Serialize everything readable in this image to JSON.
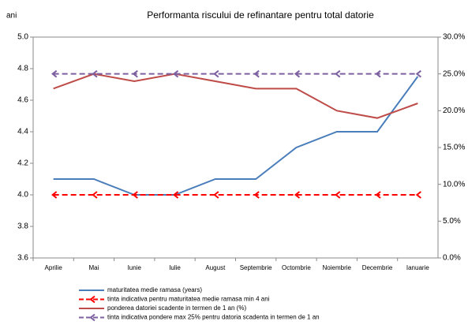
{
  "chart_data": {
    "type": "line",
    "title": "Performanta riscului de refinantare pentru total  datorie",
    "y_label": "ani",
    "categories": [
      "Aprilie",
      "Mai",
      "Iunie",
      "Iulie",
      "August",
      "Septembrie",
      "Octombrie",
      "Noiembrie",
      "Decembrie",
      "Ianuarie"
    ],
    "ylim": [
      3.6,
      5.0
    ],
    "yticks": [
      3.6,
      3.8,
      {
        "value": 4.0,
        "label": "4.0"
      },
      4.2,
      4.4,
      4.6,
      4.8,
      {
        "value": 5.0,
        "label": "5.0"
      }
    ],
    "y2lim": [
      0,
      30
    ],
    "y2ticks": [
      {
        "value": 0,
        "label": "0.0%"
      },
      {
        "value": 5,
        "label": "5.0%"
      },
      {
        "value": 10,
        "label": "10.0%"
      },
      {
        "value": 15,
        "label": "15.0%"
      },
      {
        "value": 20,
        "label": "20.0%"
      },
      {
        "value": 25,
        "label": "25.0%"
      },
      {
        "value": 30,
        "label": "30.0%"
      }
    ],
    "grid": false,
    "legend": "bottom",
    "series": [
      {
        "name": "maturitatea medie ramasa  (years)",
        "color": "#4a7ebb",
        "dashed": false,
        "marker": "none",
        "values": [
          4.1,
          4.1,
          4.0,
          4.0,
          4.1,
          4.1,
          4.3,
          4.4,
          4.4,
          4.75
        ]
      },
      {
        "name": "tinta indicativa pentru maturitatea medie ramasa min 4 ani",
        "color": "#ff0000",
        "dashed": true,
        "marker": "arrow",
        "values": [
          4.0,
          4.0,
          4.0,
          4.0,
          4.0,
          4.0,
          4.0,
          4.0,
          4.0,
          4.0
        ]
      },
      {
        "name": "ponderea datoriei scadente in termen de 1 an (%)",
        "color": "#be4b48",
        "dashed": false,
        "marker": "none",
        "axis": "y2",
        "values": [
          23,
          25,
          24,
          25,
          24,
          23,
          23,
          20,
          19,
          21
        ]
      },
      {
        "name": "tinta indicativa pondere max 25% pentru datoria scadenta in termen de  1 an",
        "color": "#7d60a0",
        "dashed": true,
        "marker": "arrow",
        "axis": "y2",
        "values": [
          25,
          25,
          25,
          25,
          25,
          25,
          25,
          25,
          25,
          25
        ]
      }
    ]
  }
}
